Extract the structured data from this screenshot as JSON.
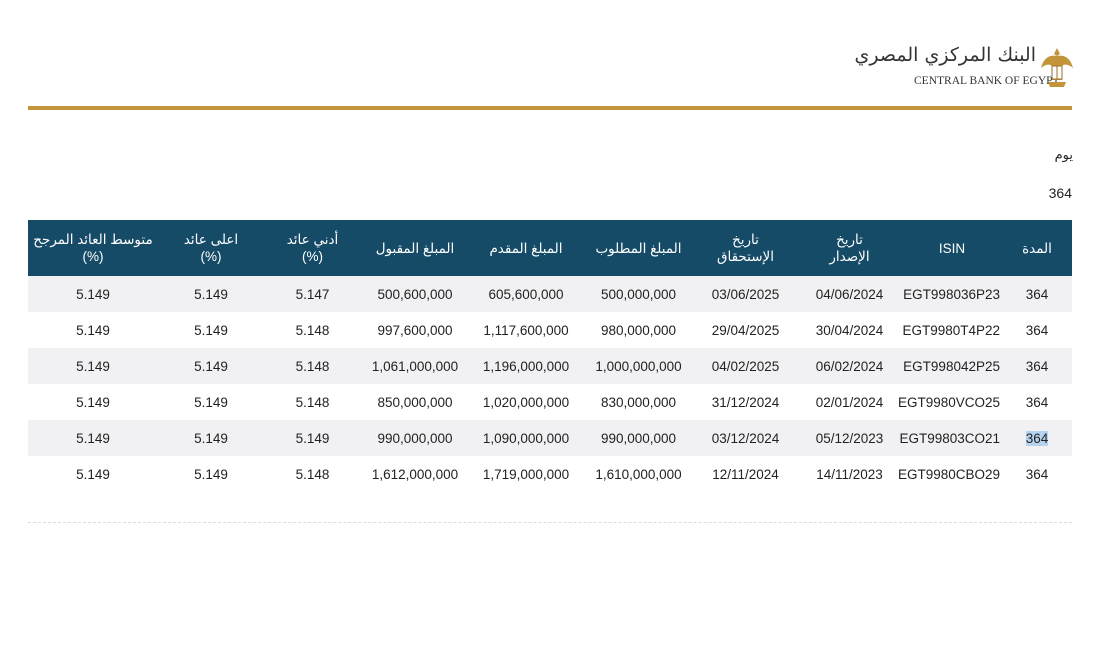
{
  "header": {
    "logo_arabic": "البنك المركزي المصري",
    "logo_english": "CENTRAL BANK OF EGYPT"
  },
  "filter": {
    "label": "يوم",
    "value": "364"
  },
  "table": {
    "columns": [
      "المدة",
      "ISIN",
      "تاريخ\nالإصدار",
      "تاريخ\nالإستحقاق",
      "المبلغ المطلوب",
      "المبلغ المقدم",
      "المبلغ المقبول",
      "أدني عائد\n(%)",
      "اعلى عائد\n(%)",
      "متوسط العائد المرجح\n(%)"
    ],
    "rows": [
      [
        "364",
        "EGT998036P23",
        "04/06/2024",
        "03/06/2025",
        "500,000,000",
        "605,600,000",
        "500,600,000",
        "5.147",
        "5.149",
        "5.149"
      ],
      [
        "364",
        "EGT9980T4P22",
        "30/04/2024",
        "29/04/2025",
        "980,000,000",
        "1,117,600,000",
        "997,600,000",
        "5.148",
        "5.149",
        "5.149"
      ],
      [
        "364",
        "EGT998042P25",
        "06/02/2024",
        "04/02/2025",
        "1,000,000,000",
        "1,196,000,000",
        "1,061,000,000",
        "5.148",
        "5.149",
        "5.149"
      ],
      [
        "364",
        "EGT9980VCO25",
        "02/01/2024",
        "31/12/2024",
        "830,000,000",
        "1,020,000,000",
        "850,000,000",
        "5.148",
        "5.149",
        "5.149"
      ],
      [
        "364",
        "EGT99803CO21",
        "05/12/2023",
        "03/12/2024",
        "990,000,000",
        "1,090,000,000",
        "990,000,000",
        "5.149",
        "5.149",
        "5.149"
      ],
      [
        "364",
        "EGT9980CBO29",
        "14/11/2023",
        "12/11/2024",
        "1,610,000,000",
        "1,719,000,000",
        "1,612,000,000",
        "5.148",
        "5.149",
        "5.149"
      ]
    ]
  }
}
